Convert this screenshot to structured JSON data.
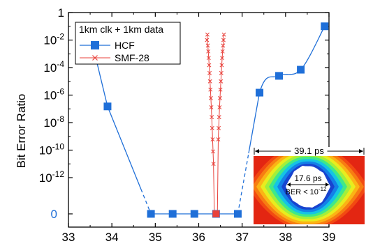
{
  "chart_data": {
    "type": "line",
    "ylabel": "Bit Error Ratio",
    "xlabel": "",
    "xlim": [
      33,
      39
    ],
    "x_ticks": [
      "33",
      "34",
      "35",
      "36",
      "37",
      "38",
      "39"
    ],
    "y_scale": "log",
    "y_ticks": [
      {
        "base": "1",
        "exp": ""
      },
      {
        "base": "10",
        "exp": "-2"
      },
      {
        "base": "10",
        "exp": "-4"
      },
      {
        "base": "10",
        "exp": "-6"
      },
      {
        "base": "10",
        "exp": "-8"
      },
      {
        "base": "10",
        "exp": "-10"
      },
      {
        "base": "10",
        "exp": "-12"
      }
    ],
    "zero_tick": "0",
    "legend": {
      "title": "1km clk + 1km data",
      "placement": "top-left"
    },
    "series": [
      {
        "name": "HCF",
        "color": "#1f6fd8",
        "marker": "square",
        "points": [
          {
            "x": 33.5,
            "y": 0.025
          },
          {
            "x": 33.9,
            "y": 1.5e-07
          },
          {
            "x": 34.9,
            "y": 0
          },
          {
            "x": 35.4,
            "y": 0
          },
          {
            "x": 35.9,
            "y": 0
          },
          {
            "x": 36.4,
            "y": 0
          },
          {
            "x": 36.9,
            "y": 0
          },
          {
            "x": 37.4,
            "y": 1.5e-06
          },
          {
            "x": 37.85,
            "y": 2.5e-05
          },
          {
            "x": 38.35,
            "y": 7e-05
          },
          {
            "x": 38.9,
            "y": 0.1
          }
        ]
      },
      {
        "name": "SMF-28",
        "color": "#e8413b",
        "marker": "x",
        "left_branch": {
          "x": [
            36.2,
            36.19,
            36.21,
            36.22,
            36.23,
            36.24,
            36.25,
            36.26,
            36.27,
            36.28,
            36.29,
            36.3,
            36.31,
            36.32,
            36.33,
            36.34,
            36.36,
            36.38
          ],
          "y": [
            0.025,
            0.01,
            0.004,
            0.0015,
            0.0005,
            0.00015,
            4e-05,
            1e-05,
            2.5e-06,
            6e-07,
            1.3e-07,
            2.5e-08,
            4e-09,
            6e-10,
            8e-11,
            1e-11,
            0,
            0
          ]
        },
        "right_branch": {
          "x": [
            36.58,
            36.57,
            36.56,
            36.55,
            36.54,
            36.53,
            36.52,
            36.51,
            36.5,
            36.49,
            36.48,
            36.47,
            36.46,
            36.45,
            36.43
          ],
          "y": [
            0.025,
            0.01,
            0.004,
            0.0015,
            0.0005,
            0.00015,
            4e-05,
            1e-05,
            2.5e-06,
            6e-07,
            1.3e-07,
            2.5e-08,
            4e-09,
            6e-10,
            0
          ]
        }
      }
    ],
    "inset": {
      "width_label": "39.1 ps",
      "opening_label": "17.6 ps",
      "ber_label_base": "BER < 10",
      "ber_label_exp": "-12",
      "colors": [
        "#e32612",
        "#f24a12",
        "#f77d12",
        "#fbb415",
        "#e9ec1e",
        "#a3ef3b",
        "#3fe88a",
        "#15c4e4",
        "#1480e8",
        "#1844cf",
        "#ffffff"
      ]
    }
  }
}
